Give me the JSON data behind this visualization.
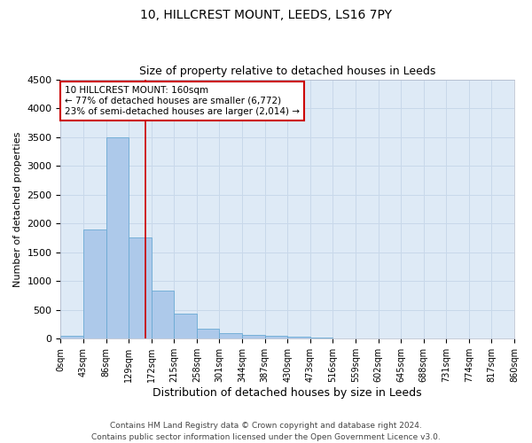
{
  "title1": "10, HILLCREST MOUNT, LEEDS, LS16 7PY",
  "title2": "Size of property relative to detached houses in Leeds",
  "xlabel": "Distribution of detached houses by size in Leeds",
  "ylabel": "Number of detached properties",
  "bin_edges": [
    0,
    43,
    86,
    129,
    172,
    215,
    258,
    301,
    344,
    387,
    430,
    473,
    516,
    559,
    602,
    645,
    688,
    731,
    774,
    817,
    860
  ],
  "bar_heights": [
    50,
    1900,
    3500,
    1750,
    830,
    440,
    170,
    100,
    70,
    50,
    30,
    25,
    0,
    0,
    0,
    0,
    0,
    0,
    0,
    0
  ],
  "bar_color": "#adc9ea",
  "bar_edge_color": "#6aaad4",
  "grid_color": "#c8d8ea",
  "bg_color": "#deeaf6",
  "property_line_x": 160,
  "property_line_color": "#cc0000",
  "annotation_text": "10 HILLCREST MOUNT: 160sqm\n← 77% of detached houses are smaller (6,772)\n23% of semi-detached houses are larger (2,014) →",
  "annotation_box_color": "#ffffff",
  "annotation_border_color": "#cc0000",
  "ylim": [
    0,
    4500
  ],
  "yticks": [
    0,
    500,
    1000,
    1500,
    2000,
    2500,
    3000,
    3500,
    4000,
    4500
  ],
  "tick_labels": [
    "0sqm",
    "43sqm",
    "86sqm",
    "129sqm",
    "172sqm",
    "215sqm",
    "258sqm",
    "301sqm",
    "344sqm",
    "387sqm",
    "430sqm",
    "473sqm",
    "516sqm",
    "559sqm",
    "602sqm",
    "645sqm",
    "688sqm",
    "731sqm",
    "774sqm",
    "817sqm",
    "860sqm"
  ],
  "footer_text": "Contains HM Land Registry data © Crown copyright and database right 2024.\nContains public sector information licensed under the Open Government Licence v3.0.",
  "title1_fontsize": 10,
  "title2_fontsize": 9,
  "xlabel_fontsize": 9,
  "ylabel_fontsize": 8,
  "tick_fontsize": 7,
  "annot_fontsize": 7.5,
  "footer_fontsize": 6.5
}
